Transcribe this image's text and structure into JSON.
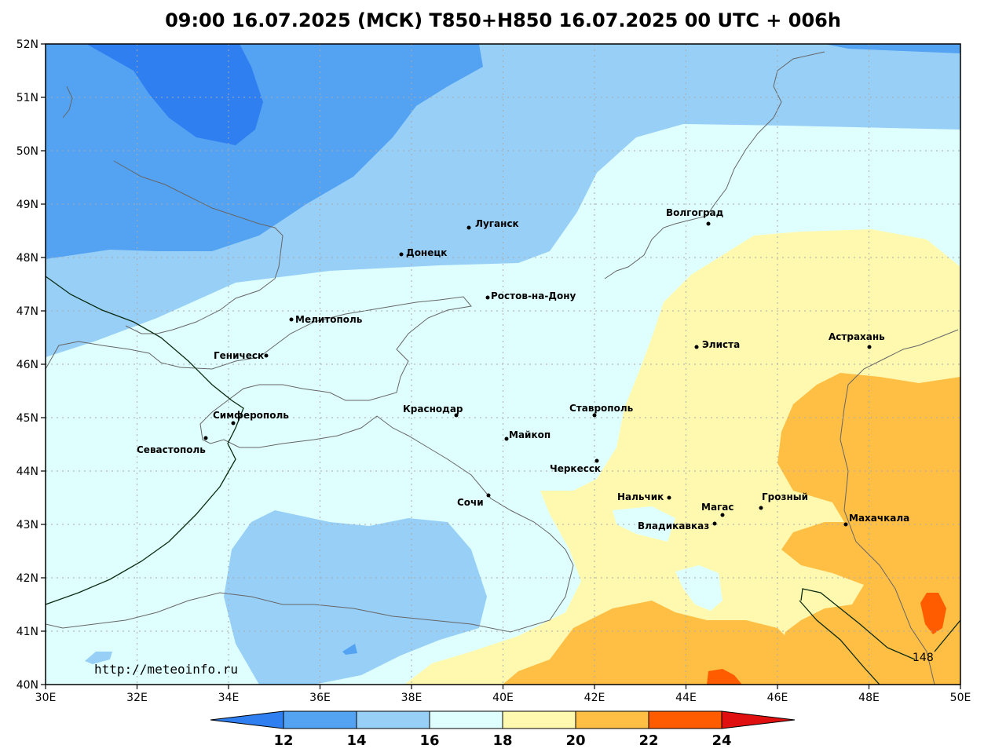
{
  "title": "09:00 16.07.2025 (МСК) T850+H850 16.07.2025 00 UTC + 006h",
  "source_url": "http://meteoinfo.ru",
  "x_ticks": [
    "30E",
    "32E",
    "34E",
    "36E",
    "38E",
    "40E",
    "42E",
    "44E",
    "46E",
    "48E",
    "50E"
  ],
  "y_ticks": [
    "52N",
    "51N",
    "50N",
    "49N",
    "48N",
    "47N",
    "46N",
    "45N",
    "44N",
    "43N",
    "42N",
    "41N",
    "40N"
  ],
  "colorbar": {
    "labels": [
      "12",
      "14",
      "16",
      "18",
      "20",
      "22",
      "24"
    ],
    "colors": [
      "#2f7ff0",
      "#54a3f3",
      "#97cff7",
      "#dfffff",
      "#fff9b0",
      "#ffbe44",
      "#ff5c00",
      "#e01010"
    ]
  },
  "contour_label": "148",
  "cities": [
    {
      "name": "Волгоград"
    },
    {
      "name": "Луганск"
    },
    {
      "name": "Донецк"
    },
    {
      "name": "Ростов-на-Дону"
    },
    {
      "name": "Мелитополь"
    },
    {
      "name": "Геническ"
    },
    {
      "name": "Элиста"
    },
    {
      "name": "Астрахань"
    },
    {
      "name": "Симферополь"
    },
    {
      "name": "Краснодар"
    },
    {
      "name": "Ставрополь"
    },
    {
      "name": "Севастополь"
    },
    {
      "name": "Майкоп"
    },
    {
      "name": "Черкесск"
    },
    {
      "name": "Нальчик"
    },
    {
      "name": "Грозный"
    },
    {
      "name": "Сочи"
    },
    {
      "name": "Магас"
    },
    {
      "name": "Махачкала"
    },
    {
      "name": "Владикавказ"
    }
  ]
}
